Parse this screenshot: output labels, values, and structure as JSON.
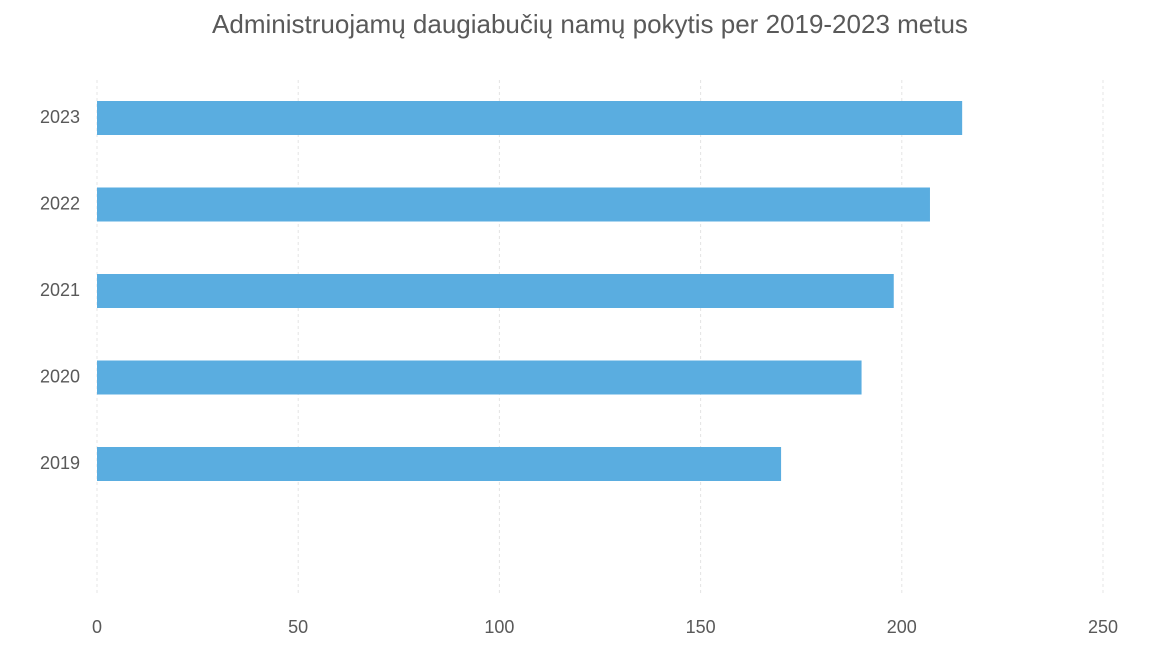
{
  "chart_data": {
    "type": "barh",
    "title": "Administruojamų daugiabučių namų pokytis per 2019-2023 metus",
    "categories": [
      "2019",
      "2020",
      "2021",
      "2022",
      "2023"
    ],
    "values": [
      170,
      190,
      198,
      207,
      215
    ],
    "color": "#5aade0",
    "xlim": [
      0,
      250
    ],
    "xticks": [
      0,
      50,
      100,
      150,
      200,
      250
    ],
    "grid": true
  }
}
